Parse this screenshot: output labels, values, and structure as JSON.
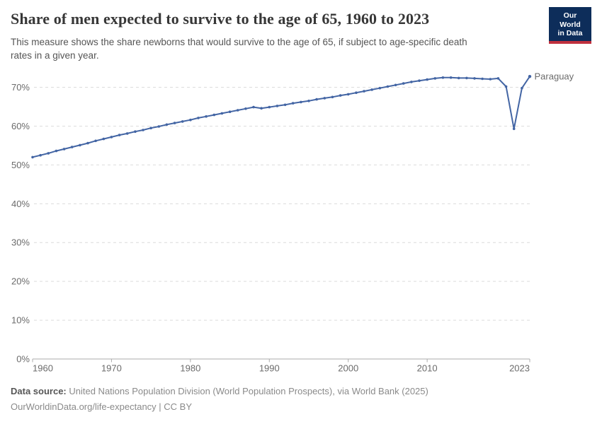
{
  "header": {
    "title": "Share of men expected to survive to the age of 65, 1960 to 2023",
    "subtitle": "This measure shows the share newborns that would survive to the age of 65, if subject to age-specific death\nrates in a given year.",
    "logo": {
      "line1": "Our World",
      "line2": "in Data"
    }
  },
  "brand_colors": {
    "logo_navy": "#0d2d5a",
    "logo_red": "#c0303e"
  },
  "chart_data": {
    "type": "line",
    "title": "Share of men expected to survive to the age of 65, 1960 to 2023",
    "xlabel": "",
    "ylabel": "",
    "xlim": [
      1960,
      2023
    ],
    "ylim": [
      0,
      75
    ],
    "grid": "horizontal-dashed",
    "legend_position": "end-of-line-label",
    "colors": {
      "line": "#4365a4",
      "entity_label": "#4365a4",
      "grid": "#dcdcdc",
      "axis": "#ababab",
      "tick_label": "#6b6b6b"
    },
    "y_ticks": [
      {
        "label": "0%",
        "value": 0
      },
      {
        "label": "10%",
        "value": 10
      },
      {
        "label": "20%",
        "value": 20
      },
      {
        "label": "30%",
        "value": 30
      },
      {
        "label": "40%",
        "value": 40
      },
      {
        "label": "50%",
        "value": 50
      },
      {
        "label": "60%",
        "value": 60
      },
      {
        "label": "70%",
        "value": 70
      }
    ],
    "x_ticks": [
      {
        "label": "1960",
        "year": 1960,
        "anchor": "start"
      },
      {
        "label": "1970",
        "year": 1970,
        "anchor": "middle"
      },
      {
        "label": "1980",
        "year": 1980,
        "anchor": "middle"
      },
      {
        "label": "1990",
        "year": 1990,
        "anchor": "middle"
      },
      {
        "label": "2000",
        "year": 2000,
        "anchor": "middle"
      },
      {
        "label": "2010",
        "year": 2010,
        "anchor": "middle"
      },
      {
        "label": "2023",
        "year": 2023,
        "anchor": "end"
      }
    ],
    "series": [
      {
        "name": "Paraguay",
        "color": "#4365a4",
        "years": [
          1960,
          1961,
          1962,
          1963,
          1964,
          1965,
          1966,
          1967,
          1968,
          1969,
          1970,
          1971,
          1972,
          1973,
          1974,
          1975,
          1976,
          1977,
          1978,
          1979,
          1980,
          1981,
          1982,
          1983,
          1984,
          1985,
          1986,
          1987,
          1988,
          1989,
          1990,
          1991,
          1992,
          1993,
          1994,
          1995,
          1996,
          1997,
          1998,
          1999,
          2000,
          2001,
          2002,
          2003,
          2004,
          2005,
          2006,
          2007,
          2008,
          2009,
          2010,
          2011,
          2012,
          2013,
          2014,
          2015,
          2016,
          2017,
          2018,
          2019,
          2020,
          2021,
          2022,
          2023
        ],
        "values": [
          52.0,
          52.5,
          53.0,
          53.6,
          54.1,
          54.6,
          55.1,
          55.6,
          56.2,
          56.7,
          57.2,
          57.7,
          58.1,
          58.6,
          59.0,
          59.5,
          59.9,
          60.4,
          60.8,
          61.2,
          61.6,
          62.1,
          62.5,
          62.9,
          63.3,
          63.7,
          64.1,
          64.5,
          64.9,
          64.6,
          64.9,
          65.2,
          65.5,
          65.9,
          66.2,
          66.5,
          66.9,
          67.2,
          67.5,
          67.9,
          68.2,
          68.6,
          69.0,
          69.4,
          69.8,
          70.2,
          70.6,
          71.0,
          71.4,
          71.7,
          72.0,
          72.3,
          72.5,
          72.5,
          72.4,
          72.4,
          72.3,
          72.2,
          72.1,
          72.3,
          70.2,
          59.3,
          69.8,
          72.8
        ]
      }
    ]
  },
  "footer": {
    "source_label": "Data source:",
    "source_text": " United Nations Population Division (World Population Prospects), via World Bank (2025)",
    "note": "OurWorldinData.org/life-expectancy | CC BY"
  }
}
